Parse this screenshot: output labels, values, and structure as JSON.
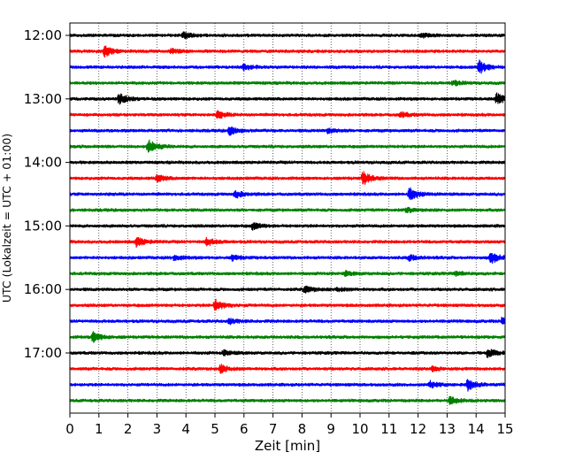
{
  "chart_data": {
    "type": "line",
    "title": "",
    "xlabel": "Zeit  [min]",
    "ylabel": "UTC (Lokalzeit = UTC + 01:00)",
    "xlim": [
      0,
      15
    ],
    "x_ticks": [
      "0",
      "1",
      "2",
      "3",
      "4",
      "5",
      "6",
      "7",
      "8",
      "9",
      "10",
      "11",
      "12",
      "13",
      "14",
      "15"
    ],
    "y_tick_labels": [
      "12:00",
      "13:00",
      "14:00",
      "15:00",
      "16:00",
      "17:00"
    ],
    "grid": "vertical dotted",
    "trace_interval_min": 15,
    "colors": [
      "#000000",
      "#ff0000",
      "#0000ff",
      "#008000"
    ],
    "series": [
      {
        "start": "12:00",
        "color": "#000000",
        "events": [
          [
            3.9,
            6
          ],
          [
            12.1,
            4
          ]
        ]
      },
      {
        "start": "12:15",
        "color": "#ff0000",
        "events": [
          [
            1.2,
            10
          ],
          [
            3.5,
            4
          ]
        ]
      },
      {
        "start": "12:30",
        "color": "#0000ff",
        "events": [
          [
            6.0,
            6
          ],
          [
            14.1,
            14
          ]
        ]
      },
      {
        "start": "12:45",
        "color": "#008000",
        "events": [
          [
            13.2,
            5
          ]
        ]
      },
      {
        "start": "13:00",
        "color": "#000000",
        "events": [
          [
            1.7,
            11
          ],
          [
            14.7,
            12
          ]
        ]
      },
      {
        "start": "13:15",
        "color": "#ff0000",
        "events": [
          [
            5.1,
            7
          ],
          [
            11.4,
            5
          ]
        ]
      },
      {
        "start": "13:30",
        "color": "#0000ff",
        "events": [
          [
            5.5,
            8
          ],
          [
            8.9,
            5
          ]
        ]
      },
      {
        "start": "13:45",
        "color": "#008000",
        "events": [
          [
            2.7,
            13
          ]
        ]
      },
      {
        "start": "14:00",
        "color": "#000000",
        "events": []
      },
      {
        "start": "14:15",
        "color": "#ff0000",
        "events": [
          [
            3.0,
            7
          ],
          [
            10.1,
            13
          ]
        ]
      },
      {
        "start": "14:30",
        "color": "#0000ff",
        "events": [
          [
            5.7,
            7
          ],
          [
            11.7,
            12
          ]
        ]
      },
      {
        "start": "14:45",
        "color": "#008000",
        "events": [
          [
            11.6,
            4
          ]
        ]
      },
      {
        "start": "15:00",
        "color": "#000000",
        "events": [
          [
            6.3,
            7
          ]
        ]
      },
      {
        "start": "15:15",
        "color": "#ff0000",
        "events": [
          [
            2.3,
            9
          ],
          [
            4.7,
            8
          ]
        ]
      },
      {
        "start": "15:30",
        "color": "#0000ff",
        "events": [
          [
            3.6,
            5
          ],
          [
            5.6,
            5
          ],
          [
            11.7,
            6
          ],
          [
            14.5,
            12
          ]
        ]
      },
      {
        "start": "15:45",
        "color": "#008000",
        "events": [
          [
            9.5,
            4
          ],
          [
            13.3,
            4
          ]
        ]
      },
      {
        "start": "16:00",
        "color": "#000000",
        "events": [
          [
            8.1,
            7
          ],
          [
            9.2,
            4
          ]
        ]
      },
      {
        "start": "16:15",
        "color": "#ff0000",
        "events": [
          [
            5.0,
            12
          ]
        ]
      },
      {
        "start": "16:30",
        "color": "#0000ff",
        "events": [
          [
            5.5,
            5
          ],
          [
            14.9,
            7
          ]
        ]
      },
      {
        "start": "16:45",
        "color": "#008000",
        "events": [
          [
            0.8,
            10
          ]
        ]
      },
      {
        "start": "17:00",
        "color": "#000000",
        "events": [
          [
            5.3,
            5
          ],
          [
            14.4,
            8
          ]
        ]
      },
      {
        "start": "17:15",
        "color": "#ff0000",
        "events": [
          [
            5.2,
            8
          ],
          [
            12.5,
            4
          ]
        ]
      },
      {
        "start": "17:30",
        "color": "#0000ff",
        "events": [
          [
            12.4,
            7
          ],
          [
            13.7,
            11
          ]
        ]
      },
      {
        "start": "17:45",
        "color": "#008000",
        "events": [
          [
            13.1,
            7
          ]
        ]
      }
    ]
  }
}
